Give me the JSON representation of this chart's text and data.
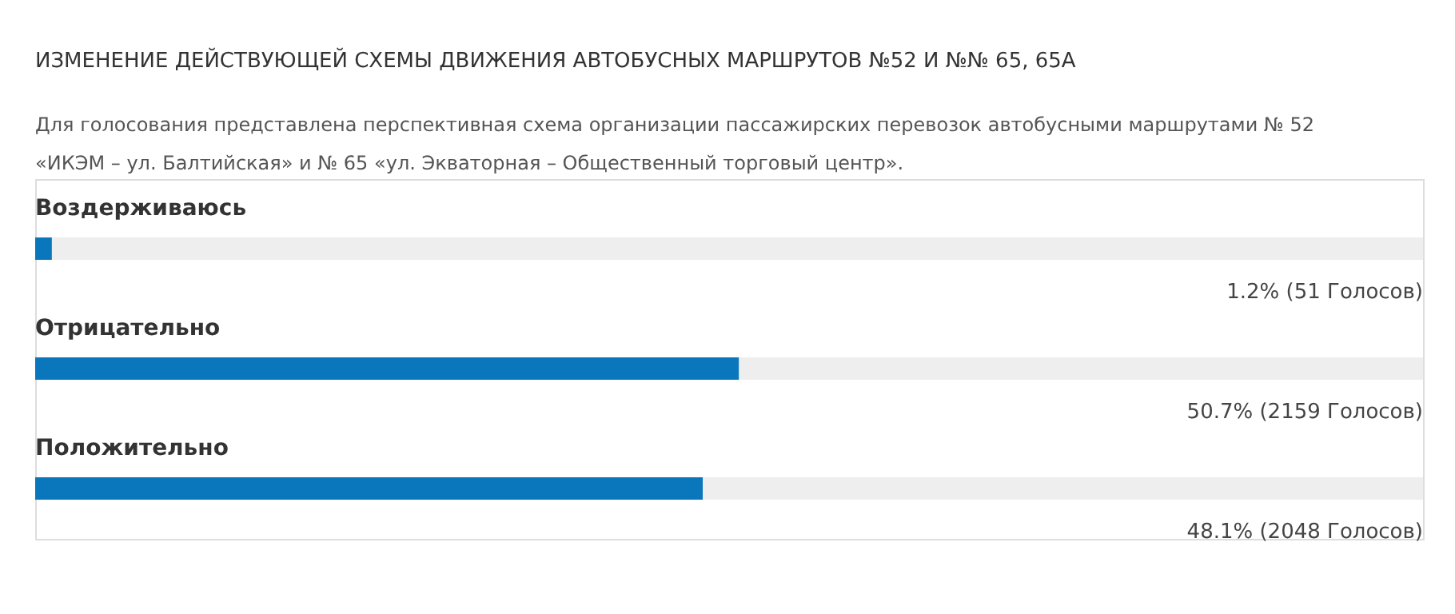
{
  "chart_data": {
    "type": "bar",
    "orientation": "horizontal",
    "title": "ИЗМЕНЕНИЕ ДЕЙСТВУЮЩЕЙ СХЕМЫ ДВИЖЕНИЯ АВТОБУСНЫХ МАРШРУТОВ №52 И №№ 65, 65А",
    "subtitle": "Для голосования представлена перспективная схема организации пассажирских перевозок автобусными маршрутами № 52 «ИКЭМ – ул. Балтийская» и № 65 «ул. Экваторная – Общественный торговый центр».",
    "categories": [
      "Воздерживаюсь",
      "Отрицательно",
      "Положительно"
    ],
    "values": [
      1.2,
      50.7,
      48.1
    ],
    "value_labels": [
      "1.2% (51 Голосов)",
      "50.7% (2159 Голосов)",
      "48.1% (2048 Голосов)"
    ],
    "color": "#0a77bd",
    "xlim": [
      0,
      100
    ],
    "tick_labels": false
  }
}
